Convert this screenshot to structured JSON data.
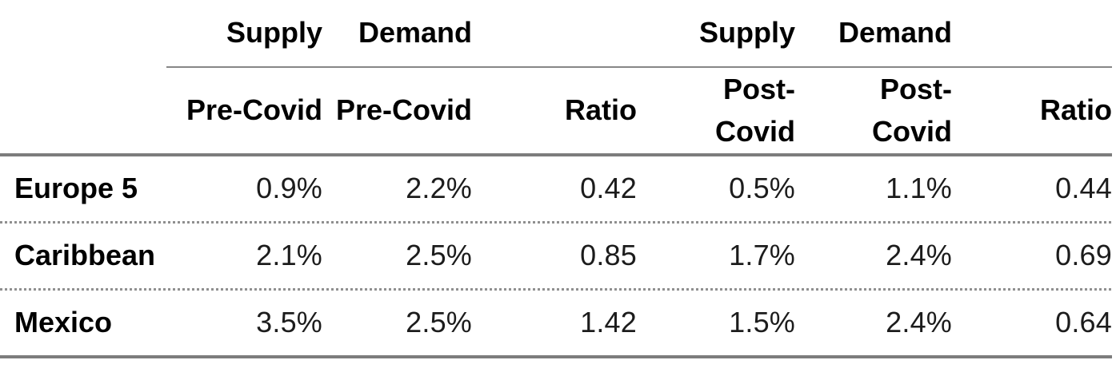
{
  "chart_data": {
    "type": "table",
    "group_header_row": [
      "",
      "Supply",
      "Demand",
      "",
      "Supply",
      "Demand",
      ""
    ],
    "sub_header_row": [
      "",
      "Pre-Covid",
      "Pre-Covid",
      "Ratio",
      "Post-\nCovid",
      "Post-\nCovid",
      "Ratio"
    ],
    "rows": [
      {
        "label": "Europe 5",
        "values": [
          "0.9%",
          "2.2%",
          "0.42",
          "0.5%",
          "1.1%",
          "0.44"
        ]
      },
      {
        "label": "Caribbean",
        "values": [
          "2.1%",
          "2.5%",
          "0.85",
          "1.7%",
          "2.4%",
          "0.69"
        ]
      },
      {
        "label": "Mexico",
        "values": [
          "3.5%",
          "2.5%",
          "1.42",
          "1.5%",
          "2.4%",
          "0.64"
        ]
      }
    ],
    "layout": {
      "columns": 7,
      "numeric_alignment": "right",
      "label_alignment": "left",
      "separators": [
        "thin-rule-under-group-headers",
        "thick-rule-under-subheaders",
        "dotted-between-data-rows",
        "thick-rule-bottom"
      ]
    }
  },
  "colors": {
    "rule_gray": "#7d7d7d",
    "thin_rule_gray": "#878787",
    "dotted_gray": "#8f8f8f",
    "text_black": "#000000",
    "number_gray": "#1c1c1c",
    "bg": "#ffffff"
  }
}
